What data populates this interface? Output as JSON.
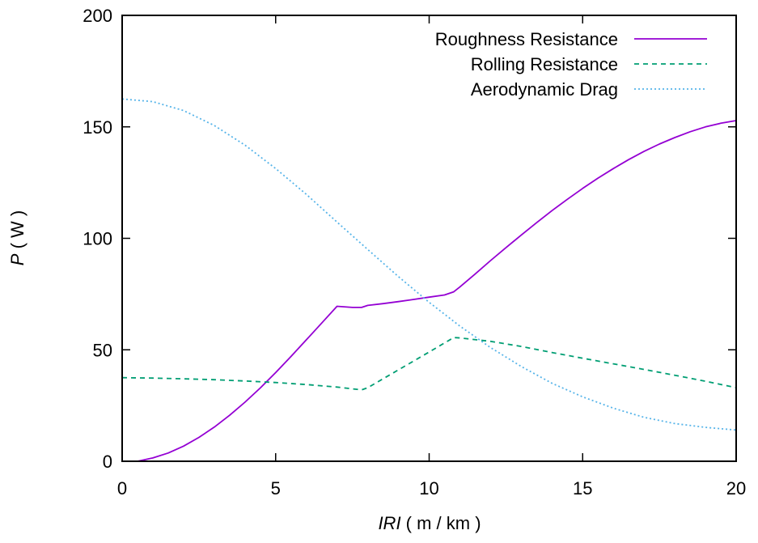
{
  "chart_data": {
    "type": "line",
    "xlabel": {
      "italic": "IRI",
      "unit": " ( m / km )"
    },
    "ylabel": {
      "italic": "P",
      "unit": " ( W )"
    },
    "xlim": [
      0,
      20
    ],
    "ylim": [
      0,
      200
    ],
    "xticks": [
      "0",
      "5",
      "10",
      "15",
      "20"
    ],
    "yticks": [
      "0",
      "50",
      "100",
      "150",
      "200"
    ],
    "legend_position": "top-right",
    "grid": false,
    "series": [
      {
        "name": "Roughness Resistance",
        "color": "#9400d3",
        "dash": "solid",
        "x": [
          0,
          0.5,
          1,
          1.5,
          2,
          2.5,
          3,
          3.5,
          4,
          4.5,
          5,
          5.5,
          6,
          6.5,
          7,
          7.5,
          7.8,
          8,
          8.5,
          9,
          9.5,
          10,
          10.5,
          10.8,
          11,
          11.5,
          12,
          12.5,
          13,
          13.5,
          14,
          14.5,
          15,
          15.5,
          16,
          16.5,
          17,
          17.5,
          18,
          18.5,
          19,
          19.5,
          20
        ],
        "y": [
          0,
          0,
          1.5,
          3.7,
          6.8,
          10.7,
          15.3,
          20.6,
          26.5,
          32.9,
          39.8,
          47.0,
          54.5,
          62.0,
          69.5,
          69.0,
          69.0,
          69.9,
          70.7,
          71.6,
          72.6,
          73.6,
          74.6,
          76.0,
          78.2,
          84.0,
          90.0,
          95.8,
          101.5,
          107.0,
          112.4,
          117.5,
          122.4,
          127.0,
          131.3,
          135.3,
          139.0,
          142.3,
          145.2,
          147.8,
          150.0,
          151.6,
          152.8
        ]
      },
      {
        "name": "Rolling Resistance",
        "color": "#009e73",
        "dash": "dashed",
        "x": [
          0,
          1,
          2,
          3,
          4,
          5,
          6,
          7,
          7.8,
          8,
          9,
          10,
          10.8,
          11,
          12,
          13,
          14,
          15,
          16,
          17,
          18,
          19,
          20
        ],
        "y": [
          37.5,
          37.3,
          37.0,
          36.6,
          36.0,
          35.3,
          34.4,
          33.3,
          32.0,
          33.0,
          41.0,
          49.0,
          55.5,
          55.3,
          53.8,
          51.5,
          48.8,
          46.2,
          43.7,
          41.2,
          38.6,
          35.9,
          33.0
        ]
      },
      {
        "name": "Aerodynamic Drag",
        "color": "#56b4e9",
        "dash": "dotted",
        "x": [
          0,
          1,
          2,
          3,
          4,
          5,
          6,
          7,
          8,
          9,
          10,
          11,
          12,
          13,
          14,
          15,
          16,
          17,
          18,
          19,
          20
        ],
        "y": [
          162.5,
          161.3,
          157.3,
          150.6,
          141.8,
          131.3,
          119.7,
          107.3,
          95.0,
          82.8,
          71.3,
          60.6,
          51.0,
          42.5,
          35.0,
          28.9,
          23.8,
          19.7,
          16.9,
          15.2,
          14.0
        ]
      }
    ]
  }
}
